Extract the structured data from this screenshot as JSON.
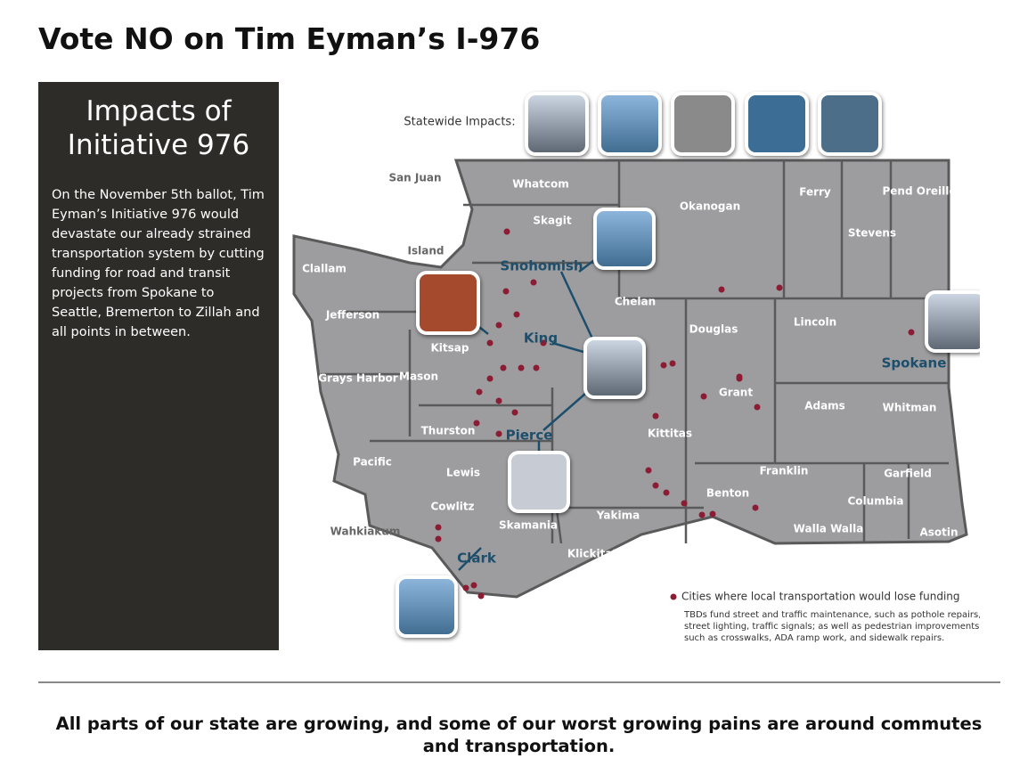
{
  "header": {
    "title": "Vote NO on Tim Eyman’s I-976"
  },
  "sidebar": {
    "heading": "Impacts of Initiative 976",
    "body": "On the November 5th ballot, Tim Eyman’s Initiative 976 would devastate our already strained transportation system by cutting funding for road and transit projects from Spokane to Seattle, Bremerton to Zillah and all points in between."
  },
  "map": {
    "statewide_label": "Statewide Impacts:",
    "counties": [
      "San Juan",
      "Whatcom",
      "Skagit",
      "Island",
      "Clallam",
      "Okanogan",
      "Ferry",
      "Stevens",
      "Pend Oreille",
      "Jefferson",
      "Chelan",
      "Douglas",
      "Lincoln",
      "Kitsap",
      "Mason",
      "Grays Harbor",
      "Grant",
      "Adams",
      "Whitman",
      "Thurston",
      "Kittitas",
      "Pacific",
      "Lewis",
      "Franklin",
      "Garfield",
      "Benton",
      "Columbia",
      "Cowlitz",
      "Yakima",
      "Skamania",
      "Wahkiakum",
      "Walla Walla",
      "Asotin",
      "Klickitat"
    ],
    "regions": [
      "Snohomish",
      "King",
      "Pierce",
      "Spokane",
      "Clark"
    ],
    "legend": "Cities where local transportation would lose funding",
    "note": [
      "TBDs fund street and traffic maintenance, such as pothole repairs,",
      "street lighting, traffic signals; as well as pedestrian improvements,",
      "such as crosswalks, ADA ramp work, and sidewalk repairs."
    ]
  },
  "footer": {
    "text": "All parts of our state are growing, and some of our worst growing pains are around commutes and transportation."
  }
}
